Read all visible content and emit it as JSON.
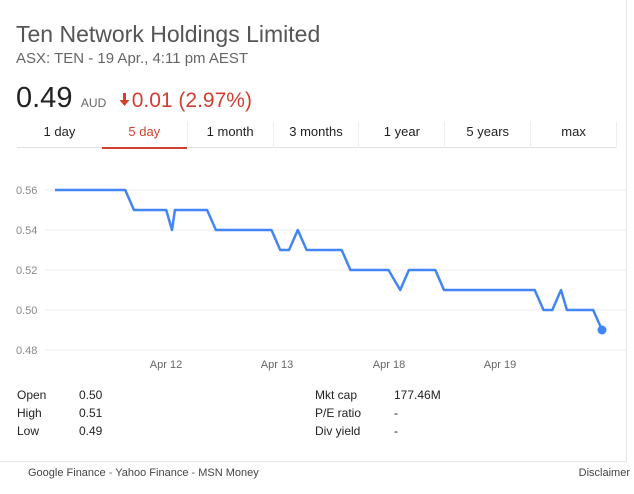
{
  "header": {
    "title": "Ten Network Holdings Limited",
    "subtitle": "ASX: TEN - 19 Apr., 4:11 pm AEST"
  },
  "quote": {
    "price": "0.49",
    "currency": "AUD",
    "change": "0.01 (2.97%)",
    "change_direction": "down",
    "change_color": "#d23f31"
  },
  "tabs": [
    {
      "label": "1 day",
      "active": false
    },
    {
      "label": "5 day",
      "active": true
    },
    {
      "label": "1 month",
      "active": false
    },
    {
      "label": "3 months",
      "active": false
    },
    {
      "label": "1 year",
      "active": false
    },
    {
      "label": "5 years",
      "active": false
    },
    {
      "label": "max",
      "active": false
    }
  ],
  "chart_data": {
    "type": "line",
    "line_color": "#4285f4",
    "grid": true,
    "ylim": [
      0.47,
      0.57
    ],
    "yticks": [
      "0.56",
      "0.54",
      "0.52",
      "0.50",
      "0.48"
    ],
    "ytick_values": [
      0.56,
      0.54,
      0.52,
      0.5,
      0.48
    ],
    "xticks": [
      "Apr 12",
      "Apr 13",
      "Apr 18",
      "Apr 19"
    ],
    "xtick_positions": [
      20,
      40,
      60,
      80
    ],
    "xlim": [
      0,
      100
    ],
    "series": [
      {
        "x": [
          0,
          12,
          13.5,
          19,
          20,
          20.5,
          26,
          27.5,
          37,
          38.5,
          40,
          41.5,
          43,
          49,
          50.5,
          57,
          59,
          60.5,
          62,
          65,
          66.5,
          82,
          83.5,
          85,
          86.5,
          87.5,
          92,
          93.5
        ],
        "y": [
          0.56,
          0.56,
          0.55,
          0.55,
          0.54,
          0.55,
          0.55,
          0.54,
          0.54,
          0.53,
          0.53,
          0.54,
          0.53,
          0.53,
          0.52,
          0.52,
          0.51,
          0.52,
          0.52,
          0.52,
          0.51,
          0.51,
          0.5,
          0.5,
          0.51,
          0.5,
          0.5,
          0.49
        ]
      }
    ]
  },
  "stats_left": [
    {
      "label": "Open",
      "value": "0.50"
    },
    {
      "label": "High",
      "value": "0.51"
    },
    {
      "label": "Low",
      "value": "0.49"
    }
  ],
  "stats_right": [
    {
      "label": "Mkt cap",
      "value": "177.46M"
    },
    {
      "label": "P/E ratio",
      "value": "-"
    },
    {
      "label": "Div yield",
      "value": "-"
    }
  ],
  "footer": {
    "google_finance": "Google Finance",
    "yahoo_finance": "Yahoo Finance",
    "msn_money": "MSN Money",
    "separator": " - ",
    "disclaimer": "Disclaimer"
  }
}
